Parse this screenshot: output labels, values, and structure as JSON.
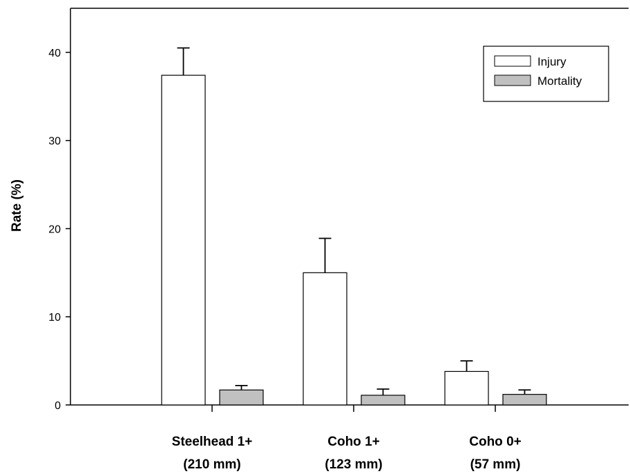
{
  "chart_data": {
    "type": "bar",
    "title": "",
    "xlabel": "",
    "ylabel": "Rate (%)",
    "ylim": [
      0,
      45
    ],
    "yticks": [
      0,
      10,
      20,
      30,
      40
    ],
    "grid": false,
    "legend_position": "top-right",
    "categories": [
      [
        "Steelhead 1+",
        "(210 mm)"
      ],
      [
        "Coho 1+",
        "(123 mm)"
      ],
      [
        "Coho 0+",
        "(57 mm)"
      ]
    ],
    "series": [
      {
        "name": "Injury",
        "values": [
          37.4,
          15.0,
          3.8
        ],
        "error": [
          3.1,
          3.9,
          1.2
        ],
        "color": "#ffffff"
      },
      {
        "name": "Mortality",
        "values": [
          1.7,
          1.1,
          1.2
        ],
        "error": [
          0.5,
          0.7,
          0.5
        ],
        "color": "#c0c0c0"
      }
    ]
  }
}
